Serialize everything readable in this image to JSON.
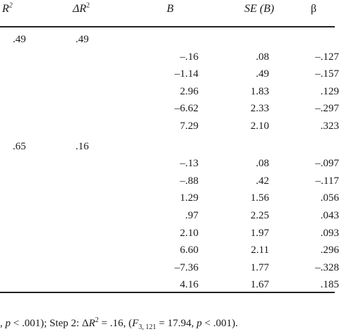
{
  "header": {
    "r2": "R",
    "r2_sup": "2",
    "delta_r2": "ΔR",
    "delta_r2_sup": "2",
    "b": "B",
    "se": "SE (B)",
    "beta": "β"
  },
  "steps": [
    {
      "r2": ".49",
      "delta_r2": ".49",
      "rows": [
        {
          "b": "–.16",
          "se": ".08",
          "beta": "–.127"
        },
        {
          "b": "–1.14",
          "se": ".49",
          "beta": "–.157"
        },
        {
          "b": "2.96",
          "se": "1.83",
          "beta": ".129"
        },
        {
          "b": "–6.62",
          "se": "2.33",
          "beta": "–.297"
        },
        {
          "b": "7.29",
          "se": "2.10",
          "beta": ".323"
        }
      ]
    },
    {
      "r2": ".65",
      "delta_r2": ".16",
      "rows": [
        {
          "b": "–.13",
          "se": ".08",
          "beta": "–.097"
        },
        {
          "b": "–.88",
          "se": ".42",
          "beta": "–.117"
        },
        {
          "b": "1.29",
          "se": "1.56",
          "beta": ".056"
        },
        {
          "b": ".97",
          "se": "2.25",
          "beta": ".043"
        },
        {
          "b": "2.10",
          "se": "1.97",
          "beta": ".093"
        },
        {
          "b": "6.60",
          "se": "2.11",
          "beta": ".296"
        },
        {
          "b": "–7.36",
          "se": "1.77",
          "beta": "–.328"
        },
        {
          "b": "4.16",
          "se": "1.67",
          "beta": ".185"
        }
      ]
    }
  ],
  "note": {
    "part1": ", p < .001); Step 2: ΔR",
    "sup": "2",
    "part2": " = .16, (F",
    "sub": "3, 121",
    "part3": " = 17.94, p < .001)."
  }
}
